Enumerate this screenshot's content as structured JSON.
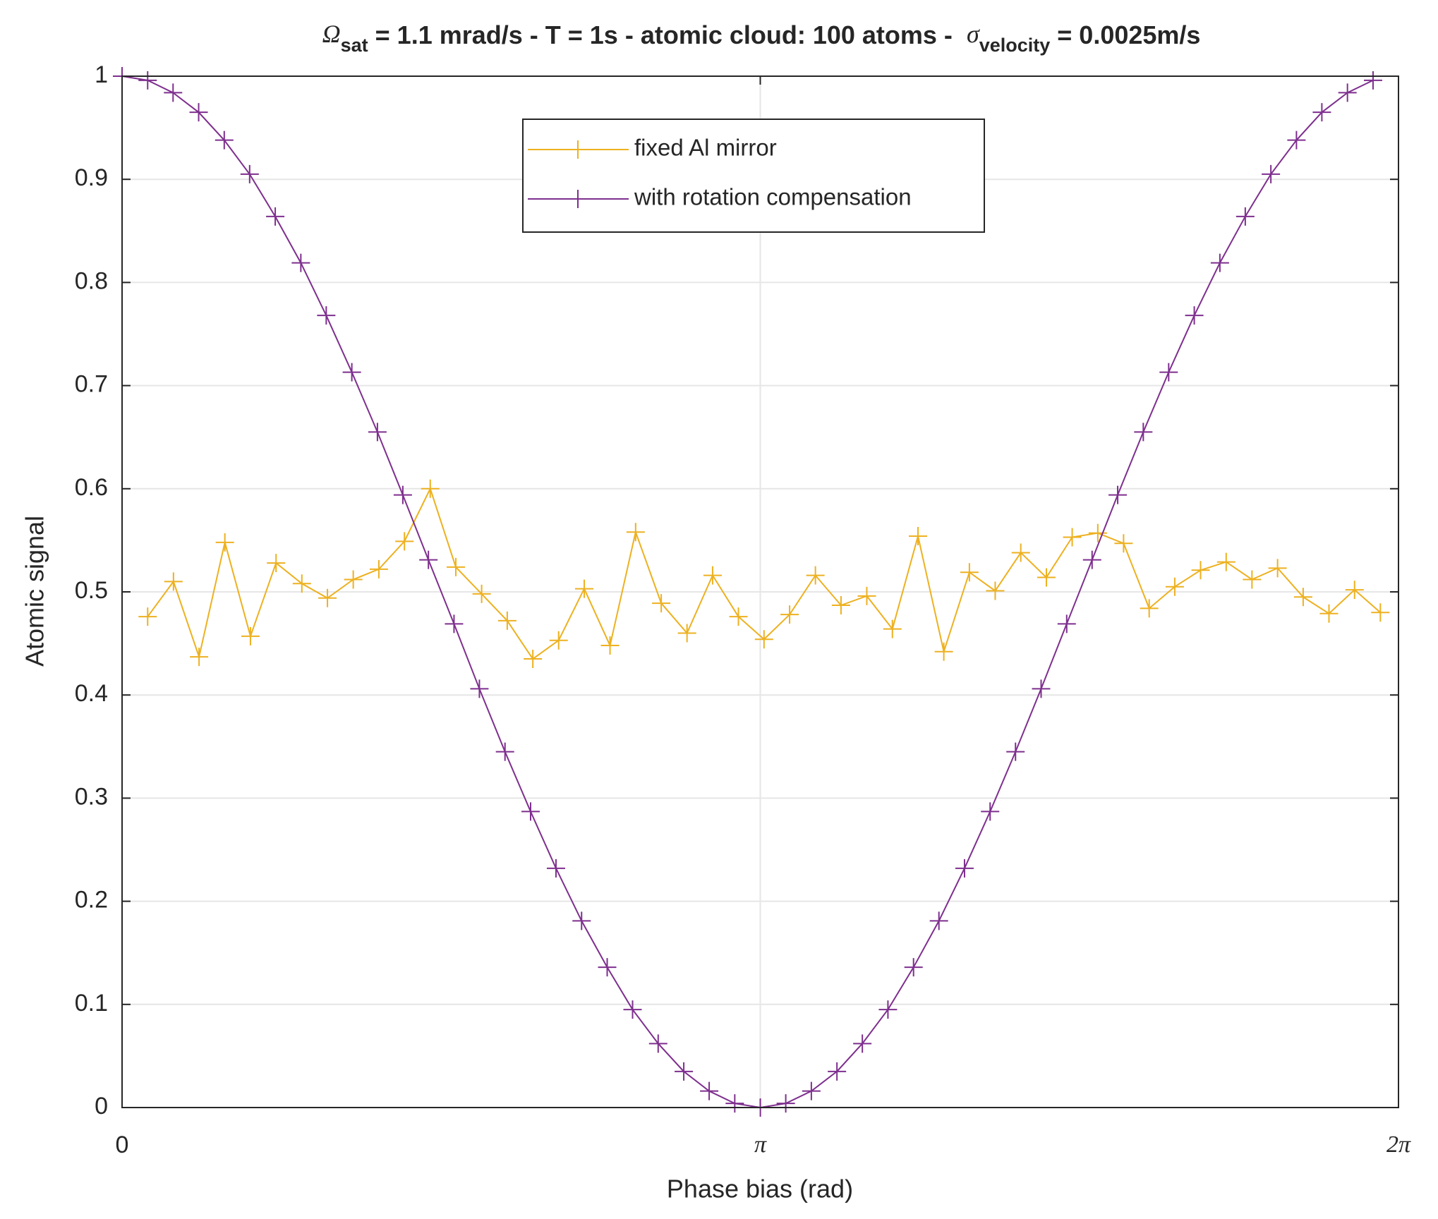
{
  "chart_data": {
    "type": "line",
    "title": {
      "omega": "Ω",
      "omega_sub": "sat",
      "middle": " = 1.1 mrad/s - T = 1s - atomic cloud: 100 atoms -  ",
      "sigma": "σ",
      "sigma_sub": "velocity",
      "end": " = 0.0025m/s"
    },
    "x_label": "Phase bias (rad)",
    "y_label": "Atomic signal",
    "xlim": [
      0,
      6.2832
    ],
    "xticks": [
      0,
      {
        "value": 3.1416,
        "label": "π"
      },
      {
        "value": 6.2832,
        "label": "2π"
      }
    ],
    "ylim": [
      0,
      1
    ],
    "yticks": [
      0,
      0.1,
      0.2,
      0.3,
      0.4,
      0.5,
      0.6,
      0.7,
      0.8,
      0.9,
      1
    ],
    "grid": true,
    "legend": "top-center",
    "series": [
      {
        "name": "fixed Al mirror",
        "color": "#EDB120",
        "x": [
          0.126,
          0.253,
          0.379,
          0.506,
          0.632,
          0.758,
          0.885,
          1.011,
          1.138,
          1.264,
          1.39,
          1.517,
          1.643,
          1.77,
          1.896,
          2.022,
          2.149,
          2.275,
          2.402,
          2.528,
          2.654,
          2.781,
          2.907,
          3.034,
          3.16,
          3.286,
          3.413,
          3.539,
          3.666,
          3.792,
          3.918,
          4.045,
          4.171,
          4.298,
          4.424,
          4.55,
          4.677,
          4.803,
          4.93,
          5.056,
          5.182,
          5.309,
          5.435,
          5.562,
          5.688,
          5.814,
          5.941,
          6.067,
          6.194
        ],
        "values": [
          0.476,
          0.51,
          0.437,
          0.548,
          0.457,
          0.528,
          0.508,
          0.494,
          0.512,
          0.522,
          0.549,
          0.6,
          0.524,
          0.498,
          0.472,
          0.435,
          0.453,
          0.503,
          0.448,
          0.558,
          0.489,
          0.46,
          0.516,
          0.476,
          0.454,
          0.478,
          0.516,
          0.487,
          0.496,
          0.464,
          0.554,
          0.442,
          0.519,
          0.501,
          0.538,
          0.514,
          0.553,
          0.557,
          0.547,
          0.484,
          0.505,
          0.521,
          0.529,
          0.512,
          0.523,
          0.495,
          0.479,
          0.502,
          0.48
        ]
      },
      {
        "name": "with rotation compensation",
        "color": "#7E2F8E",
        "x": [
          0,
          0.126,
          0.251,
          0.377,
          0.503,
          0.628,
          0.754,
          0.88,
          1.005,
          1.131,
          1.257,
          1.382,
          1.508,
          1.634,
          1.759,
          1.885,
          2.011,
          2.136,
          2.262,
          2.388,
          2.513,
          2.639,
          2.765,
          2.89,
          3.016,
          3.142,
          3.267,
          3.393,
          3.519,
          3.644,
          3.77,
          3.896,
          4.021,
          4.147,
          4.273,
          4.398,
          4.524,
          4.65,
          4.775,
          4.901,
          5.027,
          5.152,
          5.278,
          5.404,
          5.529,
          5.655,
          5.781,
          5.906,
          6.032,
          6.158
        ],
        "values": [
          1,
          0.996,
          0.984,
          0.965,
          0.938,
          0.905,
          0.864,
          0.819,
          0.768,
          0.713,
          0.655,
          0.594,
          0.531,
          0.469,
          0.406,
          0.345,
          0.287,
          0.232,
          0.181,
          0.136,
          0.095,
          0.062,
          0.035,
          0.016,
          0.004,
          0,
          0.004,
          0.016,
          0.035,
          0.062,
          0.095,
          0.136,
          0.181,
          0.232,
          0.287,
          0.345,
          0.406,
          0.469,
          0.531,
          0.594,
          0.655,
          0.713,
          0.768,
          0.819,
          0.864,
          0.905,
          0.938,
          0.965,
          0.984,
          0.996
        ]
      }
    ]
  }
}
